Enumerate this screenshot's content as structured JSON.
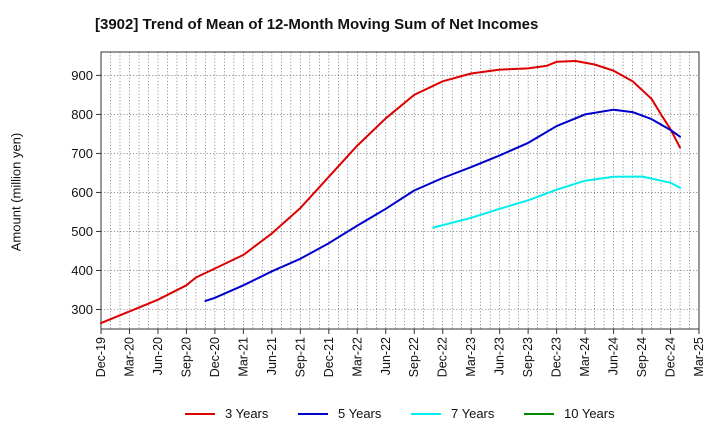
{
  "chart_data": {
    "type": "line",
    "title": "[3902]  Trend of Mean of 12-Month Moving Sum of Net Incomes",
    "xlabel": "",
    "ylabel": "Amount (million yen)",
    "ylim": [
      250,
      960
    ],
    "yticks": [
      300,
      400,
      500,
      600,
      700,
      800,
      900
    ],
    "xticks": [
      "Dec-19",
      "Mar-20",
      "Jun-20",
      "Sep-20",
      "Dec-20",
      "Mar-21",
      "Jun-21",
      "Sep-21",
      "Dec-21",
      "Mar-22",
      "Jun-22",
      "Sep-22",
      "Dec-22",
      "Mar-23",
      "Jun-23",
      "Sep-23",
      "Dec-23",
      "Mar-24",
      "Jun-24",
      "Sep-24",
      "Dec-24",
      "Mar-25"
    ],
    "grid": true,
    "legend_position": "bottom",
    "series": [
      {
        "name": "3 Years",
        "color": "#dd0000",
        "points": [
          [
            "Dec-19",
            265
          ],
          [
            "Mar-20",
            295
          ],
          [
            "Jun-20",
            325
          ],
          [
            "Sep-20",
            362
          ],
          [
            "Oct-20",
            382
          ],
          [
            "Dec-20",
            405
          ],
          [
            "Mar-21",
            440
          ],
          [
            "Jun-21",
            495
          ],
          [
            "Sep-21",
            560
          ],
          [
            "Dec-21",
            640
          ],
          [
            "Mar-22",
            720
          ],
          [
            "Jun-22",
            790
          ],
          [
            "Sep-22",
            850
          ],
          [
            "Dec-22",
            885
          ],
          [
            "Mar-23",
            905
          ],
          [
            "Jun-23",
            915
          ],
          [
            "Sep-23",
            918
          ],
          [
            "Nov-23",
            925
          ],
          [
            "Dec-23",
            935
          ],
          [
            "Feb-24",
            937
          ],
          [
            "Apr-24",
            928
          ],
          [
            "Jun-24",
            912
          ],
          [
            "Aug-24",
            885
          ],
          [
            "Oct-24",
            840
          ],
          [
            "Nov-24",
            800
          ],
          [
            "Dec-24",
            762
          ],
          [
            "Jan-25",
            715
          ]
        ]
      },
      {
        "name": "5 Years",
        "color": "#0000cc",
        "points": [
          [
            "Nov-20",
            322
          ],
          [
            "Dec-20",
            330
          ],
          [
            "Mar-21",
            362
          ],
          [
            "Jun-21",
            398
          ],
          [
            "Sep-21",
            430
          ],
          [
            "Dec-21",
            470
          ],
          [
            "Mar-22",
            515
          ],
          [
            "Jun-22",
            558
          ],
          [
            "Sep-22",
            605
          ],
          [
            "Dec-22",
            637
          ],
          [
            "Mar-23",
            665
          ],
          [
            "Jun-23",
            695
          ],
          [
            "Sep-23",
            727
          ],
          [
            "Dec-23",
            770
          ],
          [
            "Mar-24",
            800
          ],
          [
            "Jun-24",
            812
          ],
          [
            "Aug-24",
            806
          ],
          [
            "Oct-24",
            788
          ],
          [
            "Dec-24",
            760
          ],
          [
            "Jan-25",
            743
          ]
        ]
      },
      {
        "name": "7 Years",
        "color": "#00eeee",
        "points": [
          [
            "Nov-22",
            510
          ],
          [
            "Mar-23",
            535
          ],
          [
            "Jun-23",
            558
          ],
          [
            "Sep-23",
            580
          ],
          [
            "Dec-23",
            607
          ],
          [
            "Mar-24",
            630
          ],
          [
            "Jun-24",
            640
          ],
          [
            "Sep-24",
            641
          ],
          [
            "Dec-24",
            625
          ],
          [
            "Jan-25",
            612
          ]
        ]
      },
      {
        "name": "10 Years",
        "color": "#008800",
        "points": []
      }
    ]
  }
}
